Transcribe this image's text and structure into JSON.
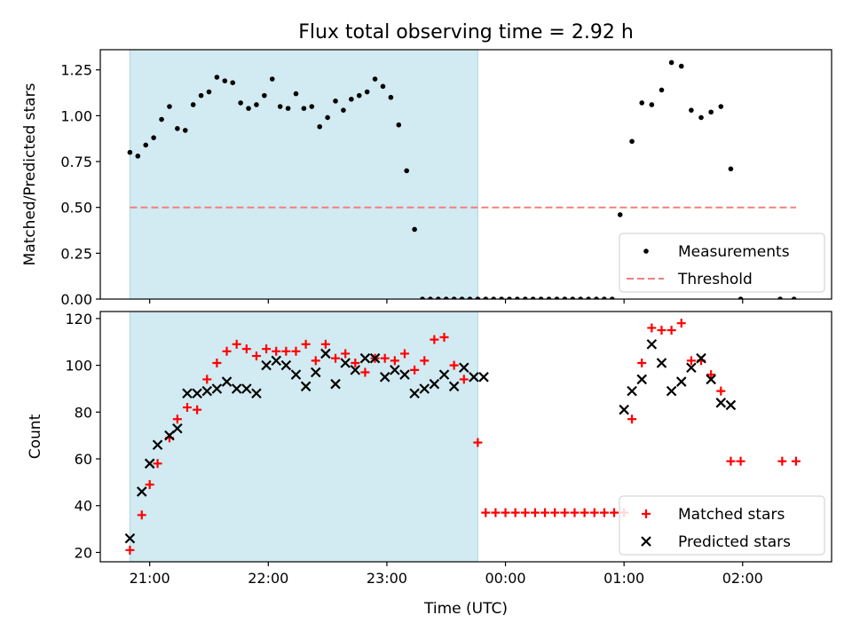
{
  "figure": {
    "title": "Flux total observing time = 2.92 h",
    "xlabel": "Time (UTC)"
  },
  "colors": {
    "shade": "#add8e6",
    "measurement": "#000000",
    "threshold": "#f08080",
    "matched": "#ff0000",
    "predicted": "#000000"
  },
  "chart_data": [
    {
      "type": "scatter",
      "ylabel": "Matched/Predicted stars",
      "xlim": [
        "20:35",
        "02:45"
      ],
      "ylim": [
        0,
        1.36
      ],
      "yticks": [
        0.0,
        0.25,
        0.5,
        0.75,
        1.0,
        1.25
      ],
      "ytick_labels": [
        "0.00",
        "0.25",
        "0.50",
        "0.75",
        "1.00",
        "1.25"
      ],
      "xticks": [
        "21:00",
        "22:00",
        "23:00",
        "00:00",
        "01:00",
        "02:00"
      ],
      "shaded_interval": [
        "20:50",
        "23:46"
      ],
      "legend": {
        "location": "lower right",
        "entries": [
          "Measurements",
          "Threshold"
        ]
      },
      "threshold": {
        "name": "Threshold",
        "value": 0.5,
        "x_range": [
          "20:50",
          "02:27"
        ]
      },
      "series": [
        {
          "name": "Measurements",
          "points": [
            [
              "20:50",
              0.8
            ],
            [
              "20:54",
              0.78
            ],
            [
              "20:58",
              0.84
            ],
            [
              "21:02",
              0.88
            ],
            [
              "21:06",
              0.98
            ],
            [
              "21:10",
              1.05
            ],
            [
              "21:14",
              0.93
            ],
            [
              "21:18",
              0.92
            ],
            [
              "21:22",
              1.06
            ],
            [
              "21:26",
              1.11
            ],
            [
              "21:30",
              1.13
            ],
            [
              "21:34",
              1.21
            ],
            [
              "21:38",
              1.19
            ],
            [
              "21:42",
              1.18
            ],
            [
              "21:46",
              1.07
            ],
            [
              "21:50",
              1.04
            ],
            [
              "21:54",
              1.06
            ],
            [
              "21:58",
              1.11
            ],
            [
              "22:02",
              1.2
            ],
            [
              "22:06",
              1.05
            ],
            [
              "22:10",
              1.04
            ],
            [
              "22:14",
              1.12
            ],
            [
              "22:18",
              1.04
            ],
            [
              "22:22",
              1.05
            ],
            [
              "22:26",
              0.94
            ],
            [
              "22:30",
              0.99
            ],
            [
              "22:34",
              1.08
            ],
            [
              "22:38",
              1.03
            ],
            [
              "22:42",
              1.09
            ],
            [
              "22:46",
              1.11
            ],
            [
              "22:50",
              1.13
            ],
            [
              "22:54",
              1.2
            ],
            [
              "22:58",
              1.16
            ],
            [
              "23:02",
              1.1
            ],
            [
              "23:06",
              0.95
            ],
            [
              "23:10",
              0.7
            ],
            [
              "23:14",
              0.38
            ],
            [
              "23:18",
              0.0
            ],
            [
              "23:22",
              0.0
            ],
            [
              "23:26",
              0.0
            ],
            [
              "23:30",
              0.0
            ],
            [
              "23:34",
              0.0
            ],
            [
              "23:38",
              0.0
            ],
            [
              "23:42",
              0.0
            ],
            [
              "23:46",
              0.0
            ],
            [
              "23:50",
              0.0
            ],
            [
              "23:54",
              0.0
            ],
            [
              "23:58",
              0.0
            ],
            [
              "00:02",
              0.0
            ],
            [
              "00:06",
              0.0
            ],
            [
              "00:10",
              0.0
            ],
            [
              "00:14",
              0.0
            ],
            [
              "00:18",
              0.0
            ],
            [
              "00:22",
              0.0
            ],
            [
              "00:26",
              0.0
            ],
            [
              "00:30",
              0.0
            ],
            [
              "00:34",
              0.0
            ],
            [
              "00:38",
              0.0
            ],
            [
              "00:42",
              0.0
            ],
            [
              "00:46",
              0.0
            ],
            [
              "00:50",
              0.0
            ],
            [
              "00:54",
              0.0
            ],
            [
              "00:58",
              0.46
            ],
            [
              "01:04",
              0.86
            ],
            [
              "01:09",
              1.07
            ],
            [
              "01:14",
              1.06
            ],
            [
              "01:19",
              1.14
            ],
            [
              "01:24",
              1.29
            ],
            [
              "01:29",
              1.27
            ],
            [
              "01:34",
              1.03
            ],
            [
              "01:39",
              0.99
            ],
            [
              "01:44",
              1.02
            ],
            [
              "01:49",
              1.05
            ],
            [
              "01:54",
              0.71
            ],
            [
              "01:59",
              0.0
            ],
            [
              "02:19",
              0.0
            ],
            [
              "02:26",
              0.0
            ]
          ]
        }
      ]
    },
    {
      "type": "scatter",
      "ylabel": "Count",
      "xlim": [
        "20:35",
        "02:45"
      ],
      "ylim": [
        16,
        123
      ],
      "yticks": [
        20,
        40,
        60,
        80,
        100,
        120
      ],
      "ytick_labels": [
        "20",
        "40",
        "60",
        "80",
        "100",
        "120"
      ],
      "xticks": [
        "21:00",
        "22:00",
        "23:00",
        "00:00",
        "01:00",
        "02:00"
      ],
      "shaded_interval": [
        "20:50",
        "23:46"
      ],
      "legend": {
        "location": "lower right",
        "entries": [
          "Matched stars",
          "Predicted stars"
        ]
      },
      "series": [
        {
          "name": "Matched stars",
          "marker": "+",
          "points": [
            [
              "20:50",
              21
            ],
            [
              "20:56",
              36
            ],
            [
              "21:00",
              49
            ],
            [
              "21:04",
              58
            ],
            [
              "21:10",
              69
            ],
            [
              "21:14",
              77
            ],
            [
              "21:19",
              82
            ],
            [
              "21:24",
              81
            ],
            [
              "21:29",
              94
            ],
            [
              "21:34",
              101
            ],
            [
              "21:39",
              106
            ],
            [
              "21:44",
              109
            ],
            [
              "21:49",
              107
            ],
            [
              "21:54",
              104
            ],
            [
              "21:59",
              107
            ],
            [
              "22:04",
              106
            ],
            [
              "22:09",
              106
            ],
            [
              "22:14",
              106
            ],
            [
              "22:19",
              109
            ],
            [
              "22:24",
              102
            ],
            [
              "22:29",
              109
            ],
            [
              "22:34",
              103
            ],
            [
              "22:39",
              105
            ],
            [
              "22:44",
              101
            ],
            [
              "22:49",
              97
            ],
            [
              "22:54",
              103
            ],
            [
              "22:59",
              103
            ],
            [
              "23:04",
              102
            ],
            [
              "23:09",
              105
            ],
            [
              "23:14",
              98
            ],
            [
              "23:19",
              102
            ],
            [
              "23:24",
              111
            ],
            [
              "23:29",
              112
            ],
            [
              "23:34",
              100
            ],
            [
              "23:39",
              94
            ],
            [
              "23:46",
              67
            ],
            [
              "23:50",
              37
            ],
            [
              "23:55",
              37
            ],
            [
              "00:00",
              37
            ],
            [
              "00:05",
              37
            ],
            [
              "00:10",
              37
            ],
            [
              "00:15",
              37
            ],
            [
              "00:20",
              37
            ],
            [
              "00:25",
              37
            ],
            [
              "00:30",
              37
            ],
            [
              "00:35",
              37
            ],
            [
              "00:40",
              37
            ],
            [
              "00:45",
              37
            ],
            [
              "00:50",
              37
            ],
            [
              "00:55",
              37
            ],
            [
              "01:00",
              37
            ],
            [
              "01:04",
              77
            ],
            [
              "01:09",
              101
            ],
            [
              "01:14",
              116
            ],
            [
              "01:19",
              115
            ],
            [
              "01:24",
              115
            ],
            [
              "01:29",
              118
            ],
            [
              "01:34",
              102
            ],
            [
              "01:39",
              102
            ],
            [
              "01:44",
              96
            ],
            [
              "01:49",
              89
            ],
            [
              "01:54",
              59
            ],
            [
              "01:59",
              59
            ],
            [
              "02:20",
              59
            ],
            [
              "02:27",
              59
            ]
          ]
        },
        {
          "name": "Predicted stars",
          "marker": "x",
          "points": [
            [
              "20:50",
              26
            ],
            [
              "20:56",
              46
            ],
            [
              "21:00",
              58
            ],
            [
              "21:04",
              66
            ],
            [
              "21:10",
              70
            ],
            [
              "21:14",
              73
            ],
            [
              "21:19",
              88
            ],
            [
              "21:24",
              88
            ],
            [
              "21:29",
              89
            ],
            [
              "21:34",
              90
            ],
            [
              "21:39",
              93
            ],
            [
              "21:44",
              90
            ],
            [
              "21:49",
              90
            ],
            [
              "21:54",
              88
            ],
            [
              "21:59",
              100
            ],
            [
              "22:04",
              102
            ],
            [
              "22:09",
              100
            ],
            [
              "22:14",
              96
            ],
            [
              "22:19",
              91
            ],
            [
              "22:24",
              97
            ],
            [
              "22:29",
              105
            ],
            [
              "22:34",
              92
            ],
            [
              "22:39",
              101
            ],
            [
              "22:44",
              98
            ],
            [
              "22:49",
              103
            ],
            [
              "22:54",
              103
            ],
            [
              "22:59",
              95
            ],
            [
              "23:04",
              98
            ],
            [
              "23:09",
              96
            ],
            [
              "23:14",
              88
            ],
            [
              "23:19",
              90
            ],
            [
              "23:24",
              92
            ],
            [
              "23:29",
              96
            ],
            [
              "23:34",
              91
            ],
            [
              "23:39",
              99
            ],
            [
              "23:44",
              95
            ],
            [
              "23:49",
              95
            ],
            [
              "01:00",
              81
            ],
            [
              "01:04",
              89
            ],
            [
              "01:09",
              94
            ],
            [
              "01:14",
              109
            ],
            [
              "01:19",
              101
            ],
            [
              "01:24",
              89
            ],
            [
              "01:29",
              93
            ],
            [
              "01:34",
              99
            ],
            [
              "01:39",
              103
            ],
            [
              "01:44",
              94
            ],
            [
              "01:49",
              84
            ],
            [
              "01:54",
              83
            ]
          ]
        }
      ]
    }
  ]
}
